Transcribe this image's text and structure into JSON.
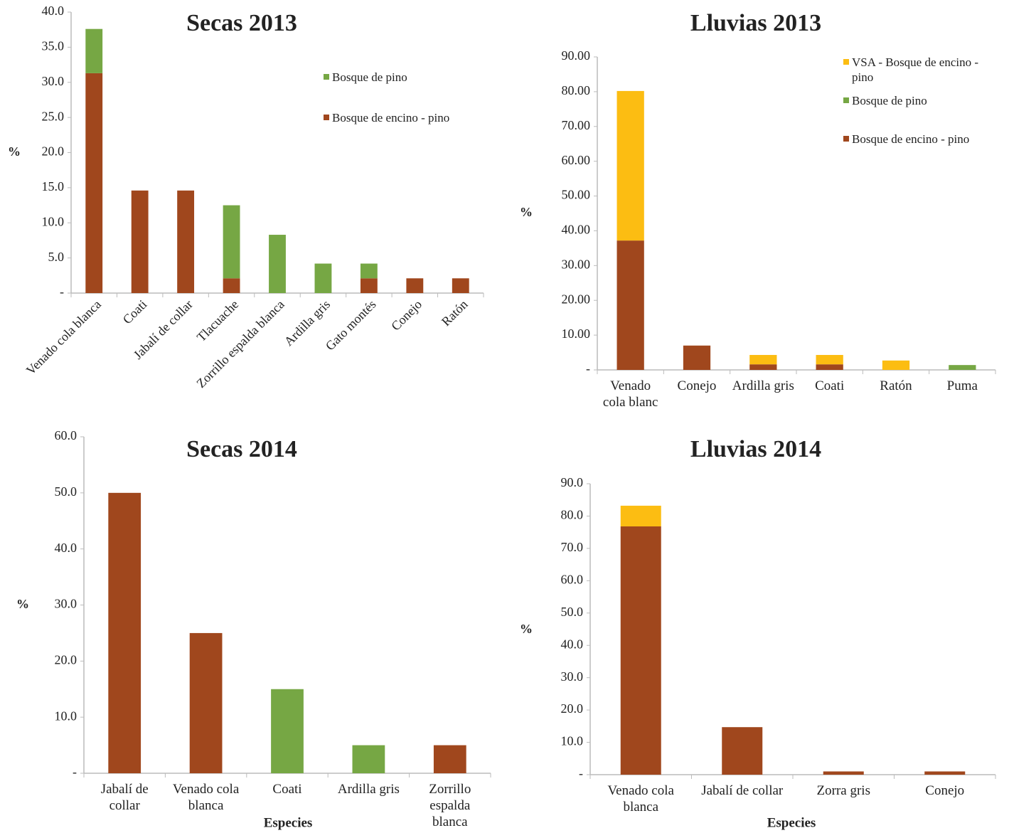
{
  "chart_data": [
    {
      "type": "bar",
      "stacked": true,
      "title": "Secas 2013",
      "y_label": "%",
      "categories": [
        "Venado cola blanca",
        "Coati",
        "Jabalí de collar",
        "Tlacuache",
        "Zorrillo espalda blanca",
        "Ardilla gris",
        "Gato montés",
        "Conejo",
        "Ratón"
      ],
      "series": [
        {
          "name": "Bosque de encino - pino",
          "color": "#a0471d",
          "values": [
            31.3,
            14.6,
            14.6,
            2.1,
            0,
            0,
            2.1,
            2.1,
            2.1
          ]
        },
        {
          "name": "Bosque de pino",
          "color": "#76a744",
          "values": [
            6.3,
            0,
            0,
            10.4,
            8.3,
            4.2,
            2.1,
            0,
            0
          ]
        }
      ],
      "ylim": [
        0,
        40
      ],
      "yticks": [
        {
          "value": 0,
          "label": "-"
        },
        {
          "value": 5,
          "label": "5.0"
        },
        {
          "value": 10,
          "label": "10.0"
        },
        {
          "value": 15,
          "label": "15.0"
        },
        {
          "value": 20,
          "label": "20.0"
        },
        {
          "value": 25,
          "label": "25.0"
        },
        {
          "value": 30,
          "label": "30.0"
        },
        {
          "value": 35,
          "label": "35.0"
        },
        {
          "value": 40,
          "label": "40.0"
        }
      ],
      "x_label_rotation": -45
    },
    {
      "type": "bar",
      "stacked": true,
      "title": "Lluvias 2013",
      "y_label": "%",
      "categories": [
        "Venado cola blanc",
        "Conejo",
        "Ardilla gris",
        "Coati",
        "Ratón",
        "Puma"
      ],
      "series": [
        {
          "name": "Bosque de encino - pino",
          "color": "#a0471d",
          "values": [
            37.2,
            7.0,
            1.6,
            1.6,
            0,
            0
          ]
        },
        {
          "name": "Bosque de pino",
          "color": "#76a744",
          "values": [
            0,
            0,
            0,
            0,
            0,
            1.4
          ]
        },
        {
          "name": "VSA - Bosque de encino - pino",
          "color": "#fcbd12",
          "values": [
            43.0,
            0,
            2.7,
            2.7,
            2.7,
            0
          ]
        }
      ],
      "ylim": [
        0,
        90
      ],
      "yticks": [
        {
          "value": 0,
          "label": "-"
        },
        {
          "value": 10,
          "label": "10.00"
        },
        {
          "value": 20,
          "label": "20.00"
        },
        {
          "value": 30,
          "label": "30.00"
        },
        {
          "value": 40,
          "label": "40.00"
        },
        {
          "value": 50,
          "label": "50.00"
        },
        {
          "value": 60,
          "label": "60.00"
        },
        {
          "value": 70,
          "label": "70.00"
        },
        {
          "value": 80,
          "label": "80.00"
        },
        {
          "value": 90,
          "label": "90.00"
        }
      ],
      "x_label_rotation": 0
    },
    {
      "type": "bar",
      "stacked": true,
      "title": "Secas 2014",
      "y_label": "%",
      "x_label": "Especies",
      "categories": [
        "Jabalí de collar",
        "Venado cola blanca",
        "Coati",
        "Ardilla gris",
        "Zorrillo espalda blanca"
      ],
      "series": [
        {
          "color": "#a0471d",
          "values": [
            50.0,
            25.0,
            0,
            0,
            5.0
          ]
        },
        {
          "color": "#76a744",
          "values": [
            0,
            0,
            15.0,
            5.0,
            0
          ]
        }
      ],
      "ylim": [
        0,
        60
      ],
      "yticks": [
        {
          "value": 0,
          "label": "-"
        },
        {
          "value": 10,
          "label": "10.0"
        },
        {
          "value": 20,
          "label": "20.0"
        },
        {
          "value": 30,
          "label": "30.0"
        },
        {
          "value": 40,
          "label": "40.0"
        },
        {
          "value": 50,
          "label": "50.0"
        },
        {
          "value": 60,
          "label": "60.0"
        }
      ],
      "x_label_rotation": 0
    },
    {
      "type": "bar",
      "stacked": true,
      "title": "Lluvias 2014",
      "y_label": "%",
      "x_label": "Especies",
      "categories": [
        "Venado cola blanca",
        "Jabalí de collar",
        "Zorra gris",
        "Conejo"
      ],
      "series": [
        {
          "color": "#a0471d",
          "values": [
            76.8,
            14.7,
            1.0,
            1.0
          ]
        },
        {
          "color": "#fcbd12",
          "values": [
            6.4,
            0,
            0,
            0
          ]
        }
      ],
      "ylim": [
        0,
        90
      ],
      "yticks": [
        {
          "value": 0,
          "label": "-"
        },
        {
          "value": 10,
          "label": "10.0"
        },
        {
          "value": 20,
          "label": "20.0"
        },
        {
          "value": 30,
          "label": "30.0"
        },
        {
          "value": 40,
          "label": "40.0"
        },
        {
          "value": 50,
          "label": "50.0"
        },
        {
          "value": 60,
          "label": "60.0"
        },
        {
          "value": 70,
          "label": "70.0"
        },
        {
          "value": 80,
          "label": "80.0"
        },
        {
          "value": 90,
          "label": "90.0"
        }
      ],
      "x_label_rotation": 0
    }
  ]
}
